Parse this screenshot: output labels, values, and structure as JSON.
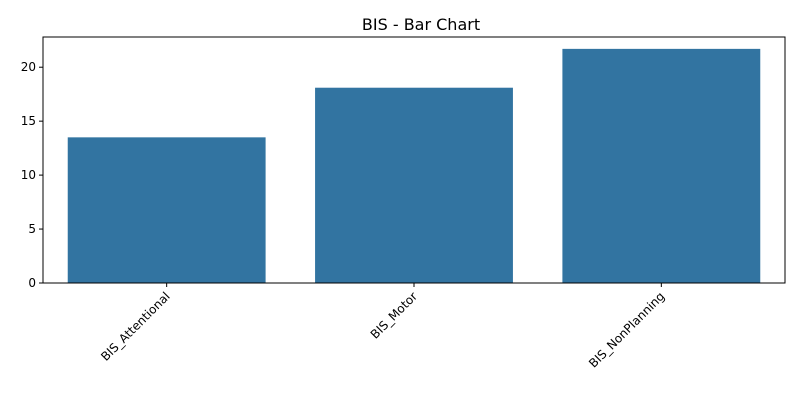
{
  "chart_data": {
    "type": "bar",
    "title": "BIS - Bar Chart",
    "xlabel": "",
    "ylabel": "",
    "categories": [
      "BIS_Attentional",
      "BIS_Motor",
      "BIS_NonPlanning"
    ],
    "values": [
      13.5,
      18.1,
      21.7
    ],
    "ylim": [
      0,
      22.8
    ],
    "yticks": [
      0,
      5,
      10,
      15,
      20
    ],
    "grid": false,
    "legend": "none",
    "bar_color": "#3274a1"
  }
}
